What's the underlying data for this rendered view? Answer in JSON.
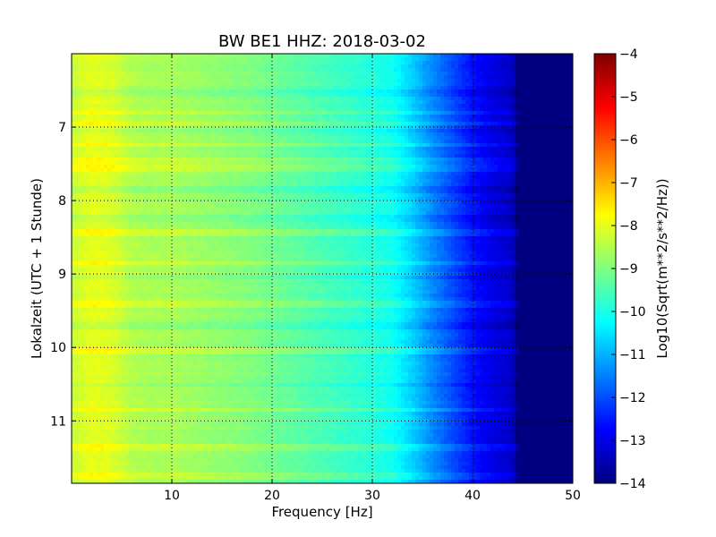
{
  "chart_data": {
    "type": "heatmap",
    "title": "BW BE1 HHZ: 2018-03-02",
    "xlabel": "Frequency [Hz]",
    "ylabel": "Lokalzeit (UTC + 1 Stunde)",
    "colorbar_label": "Log10(Sqrt(m**2/s**2/Hz))",
    "colormap": "jet",
    "grid": true,
    "xlim": [
      0,
      50
    ],
    "ylim": [
      6.0,
      11.85
    ],
    "y_inverted": true,
    "clim": [
      -14,
      -4
    ],
    "x_ticks": [
      10,
      20,
      30,
      40,
      50
    ],
    "x_tick_labels": [
      "10",
      "20",
      "30",
      "40",
      "50"
    ],
    "y_ticks": [
      7,
      8,
      9,
      10,
      11
    ],
    "y_tick_labels": [
      "7",
      "8",
      "9",
      "10",
      "11"
    ],
    "colorbar_ticks": [
      -4,
      -5,
      -6,
      -7,
      -8,
      -9,
      -10,
      -11,
      -12,
      -13,
      -14
    ],
    "colorbar_tick_labels": [
      "−4",
      "−5",
      "−6",
      "−7",
      "−8",
      "−9",
      "−10",
      "−11",
      "−12",
      "−13",
      "−14"
    ],
    "spectral_profile": {
      "frequency_hz": [
        0,
        2,
        4,
        6,
        8,
        10,
        14,
        18,
        22,
        26,
        30,
        32,
        34,
        36,
        38,
        40,
        42,
        44,
        44.5,
        50
      ],
      "log_amplitude": [
        -8.3,
        -8.0,
        -8.1,
        -8.5,
        -8.6,
        -8.6,
        -8.8,
        -9.0,
        -9.3,
        -9.6,
        -9.9,
        -10.1,
        -10.7,
        -11.4,
        -12.0,
        -12.6,
        -13.0,
        -13.3,
        -14.0,
        -14.0
      ]
    },
    "energetic_rows_local_time": [
      6.8,
      6.95,
      7.25,
      7.45,
      7.55,
      8.45,
      8.85,
      9.4,
      10.05,
      10.85,
      11.35,
      11.75
    ],
    "quiet_rows_local_time": [
      6.55,
      7.05,
      7.85,
      8.25,
      9.05,
      9.7,
      10.5
    ]
  }
}
